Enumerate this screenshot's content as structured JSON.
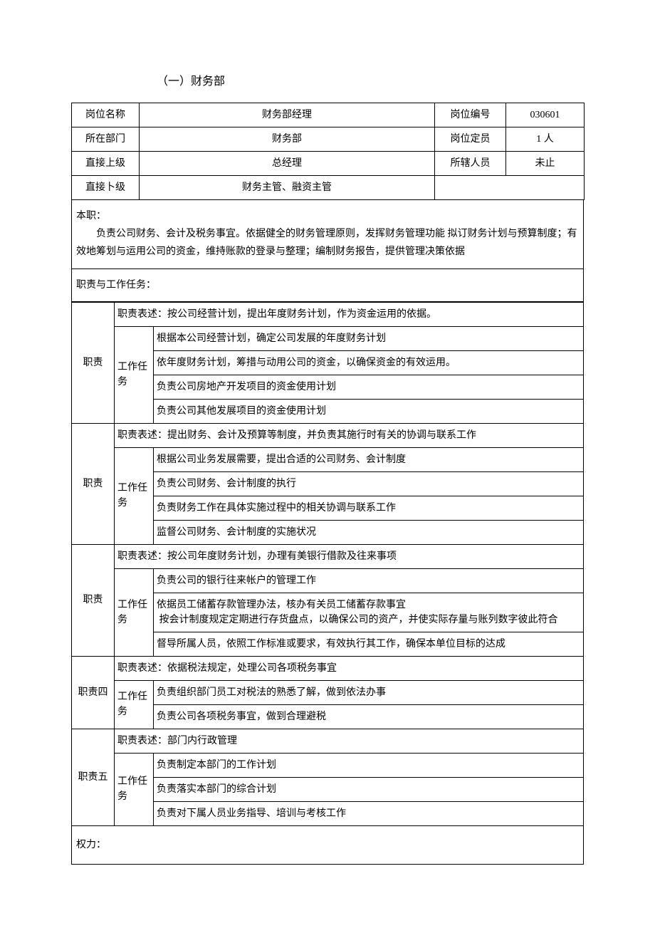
{
  "title": "（一）财务部",
  "header": {
    "row1": {
      "l1": "岗位名称",
      "v1": "财务部经理",
      "l2": "岗位编号",
      "v2": "030601"
    },
    "row2": {
      "l1": "所在部门",
      "v1": "财务部",
      "l2": "岗位定员",
      "v2": "1 人"
    },
    "row3": {
      "l1": "直接上级",
      "v1": "总经理",
      "l2": "所辖人员",
      "v2": "未止"
    },
    "row4": {
      "l1": "直接卜级",
      "v1": "财务主管、融资主管"
    }
  },
  "benzhi": {
    "label": "本职：",
    "text": "负责公司财务、会计及税务事宜。依据健全的财务管理原则，发挥财务管理功能 拟订财务计划与预算制度；有效地筹划与运用公司的资金，维持账款的登录与整理；编制财务报告，提供管理决策依据"
  },
  "zhize_label": "职责与工作任务：",
  "duties": [
    {
      "side": "职责",
      "desc": "职责表述：按公司经营计划，提出年度财务计划，作为资金运用的依据。",
      "task_label": "工作任务",
      "tasks": [
        "根据本公司经营计划，确定公司发展的年度财务计划",
        "依年度财务计划，筹措与动用公司的资金，以确保资金的有效运用。",
        "负责公司房地产开发项目的资金使用计划",
        "负责公司其他发展项目的资金使用计划"
      ]
    },
    {
      "side": "职责",
      "desc": "职责表述：提出财务、会计及预算等制度，并负责其施行时有关的协调与联系工作",
      "task_label": "工作任务",
      "tasks": [
        "根据公司业务发展需要，提出合适的公司财务、会计制度",
        "负责公司财务、会计制度的执行",
        "负责财务工作在具体实施过程中的相关协调与联系工作",
        "监督公司财务、会计制度的实施状况"
      ]
    },
    {
      "side": "职责",
      "desc": "职责表述：按公司年度财务计划，办理有美银行借款及往来事项",
      "task_label": "工作任务",
      "tasks": [
        "负责公司的银行往来帐户的管理工作",
        "依据员工储蓄存款管理办法，核办有关员工储蓄存款事宜\n 按会计制度规定定期进行存货盘点，以确保公司的资产，并使实际存量与账列数字彼此符合",
        "督导所属人员，依照工作标准或要求，有效执行其工作，确保本单位目标的达成"
      ]
    },
    {
      "side": "职责四",
      "desc": "职责表述：依据税法规定，处理公司各项税务事宜",
      "task_label": "工作任务",
      "tasks": [
        "负责组织部门员工对税法的熟悉了解，做到依法办事",
        "负责公司各项税务事宜，做到合理避税"
      ]
    },
    {
      "side": "职责五",
      "desc": "职责表述：部门内行政管理",
      "task_label": "工作任务",
      "tasks": [
        "负责制定本部门的工作计划",
        "负责落实本部门的综合计划",
        "负责对下属人员业务指导、培训与考核工作"
      ]
    }
  ],
  "quanli": "权力：",
  "style": {
    "col_widths": {
      "c1": 95,
      "c2": 130,
      "c3": 285,
      "c4": 100,
      "c5": 110
    },
    "duty_widths": {
      "side": 60,
      "task": 55,
      "rest": 605
    },
    "border_color": "#000000",
    "font_size": 14,
    "title_font_size": 16,
    "background": "#ffffff"
  }
}
